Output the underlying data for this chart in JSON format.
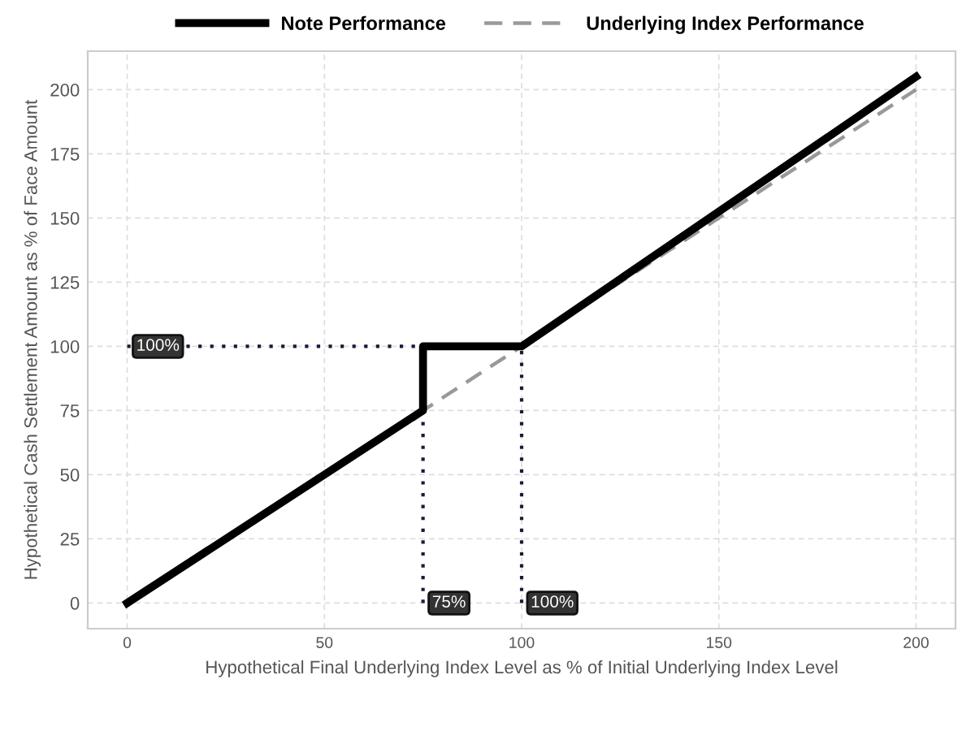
{
  "chart_data": {
    "type": "line",
    "xlabel": "Hypothetical Final Underlying Index Level as % of Initial Underlying Index Level",
    "ylabel": "Hypothetical Cash Settlement Amount as % of Face Amount",
    "series": [
      {
        "name": "Note Performance",
        "color": "#000000",
        "line_style": "solid",
        "x": [
          0,
          75,
          75,
          100,
          200
        ],
        "values": [
          0,
          75,
          100,
          100,
          205
        ]
      },
      {
        "name": "Underlying Index Performance",
        "color": "#999999",
        "line_style": "dashed",
        "x": [
          0,
          200
        ],
        "values": [
          0,
          200
        ]
      },
      {
        "color": "#1a1a3a",
        "line_style": "dotted",
        "x": [
          0,
          75
        ],
        "values": [
          100,
          100
        ]
      },
      {
        "color": "#1a1a3a",
        "line_style": "dotted",
        "x": [
          75,
          75
        ],
        "values": [
          0,
          100
        ]
      },
      {
        "color": "#1a1a3a",
        "line_style": "dotted",
        "x": [
          100,
          100
        ],
        "values": [
          0,
          100
        ]
      }
    ],
    "annotations": [
      {
        "text": "100%",
        "x": 0,
        "y": 100
      },
      {
        "text": "75%",
        "x": 75,
        "y": 0
      },
      {
        "text": "100%",
        "x": 100,
        "y": 0
      }
    ],
    "xlim": [
      -10,
      210
    ],
    "ylim": [
      -10,
      215
    ],
    "xticks": [
      0,
      50,
      100,
      150,
      200
    ],
    "yticks": [
      0,
      25,
      50,
      75,
      100,
      125,
      150,
      175,
      200
    ],
    "grid": true,
    "legend": "top",
    "marker": "none"
  }
}
